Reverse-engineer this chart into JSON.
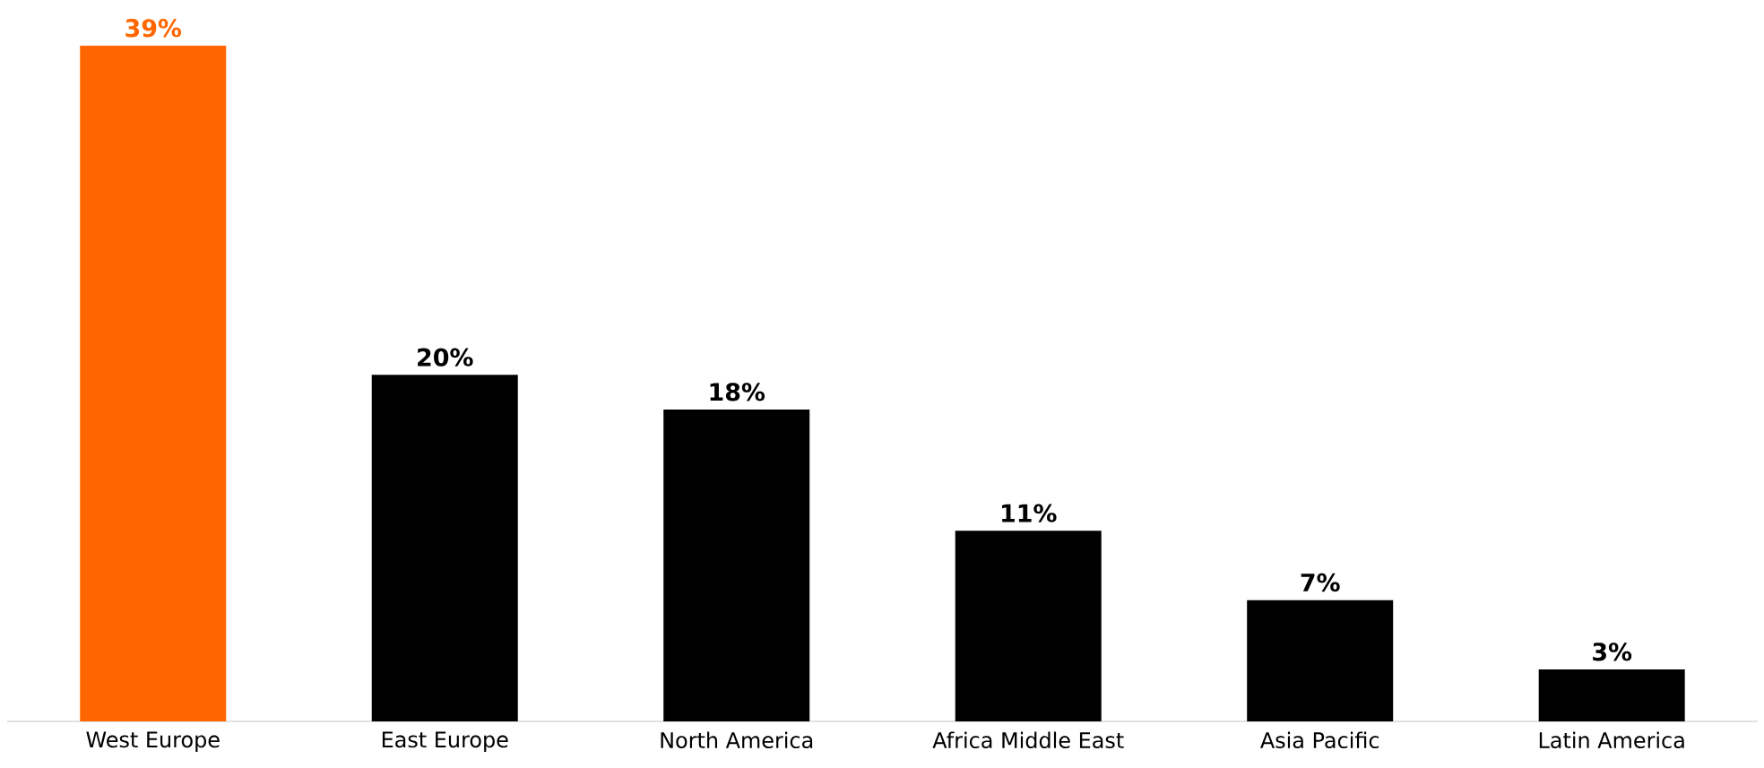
{
  "chart_data": {
    "type": "bar",
    "categories": [
      "West Europe",
      "East Europe",
      "North America",
      "Africa Middle East",
      "Asia Pacific",
      "Latin America"
    ],
    "values": [
      39,
      20,
      18,
      11,
      7,
      3
    ],
    "colors": [
      "#ff6600",
      "#000000",
      "#000000",
      "#000000",
      "#000000",
      "#000000"
    ],
    "value_labels": [
      "39%",
      "20%",
      "18%",
      "11%",
      "7%",
      "3%"
    ]
  }
}
